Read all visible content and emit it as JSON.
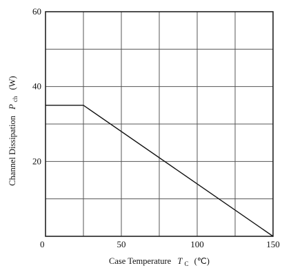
{
  "chart_data": {
    "type": "line",
    "title": "",
    "xlabel": "Case Temperature",
    "xlabel_symbol": "T",
    "xlabel_sub": "C",
    "xlabel_unit": "(℃)",
    "ylabel": "Channel Dissipation",
    "ylabel_symbol": "P",
    "ylabel_sub": "ch",
    "ylabel_unit": "(W)",
    "xlim": [
      0,
      150
    ],
    "ylim": [
      0,
      60
    ],
    "xticks": [
      0,
      50,
      100,
      150
    ],
    "yticks": [
      20,
      40,
      60
    ],
    "xtick_labels": [
      "0",
      "50",
      "100",
      "150"
    ],
    "ytick_labels": [
      "20",
      "40",
      "60"
    ],
    "grid": true,
    "x_grid_step": 25,
    "y_grid_step": 10,
    "series": [
      {
        "x": [
          0,
          25,
          150
        ],
        "y": [
          35,
          35,
          0
        ]
      }
    ]
  }
}
